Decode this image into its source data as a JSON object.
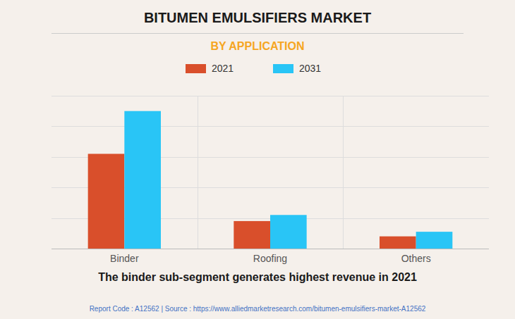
{
  "chart_data": {
    "type": "bar",
    "title": "BITUMEN EMULSIFIERS MARKET",
    "subtitle": "BY APPLICATION",
    "categories": [
      "Binder",
      "Roofing",
      "Others"
    ],
    "series": [
      {
        "name": "2021",
        "color": "#D94F2B",
        "values": [
          62,
          18,
          8
        ]
      },
      {
        "name": "2031",
        "color": "#29C5F6",
        "values": [
          90,
          22,
          11
        ]
      }
    ],
    "ylim": [
      0,
      100
    ],
    "yticks": [
      0,
      20,
      40,
      60,
      80,
      100
    ],
    "grid": true,
    "legend": "top",
    "tick_labels": "x",
    "annotations": [
      "The binder sub-segment generates highest revenue in 2021",
      "Report Code : A12562  |  Source : https://www.alliedmarketresearch.com/bitumen-emulsifiers-market-A12562"
    ]
  }
}
